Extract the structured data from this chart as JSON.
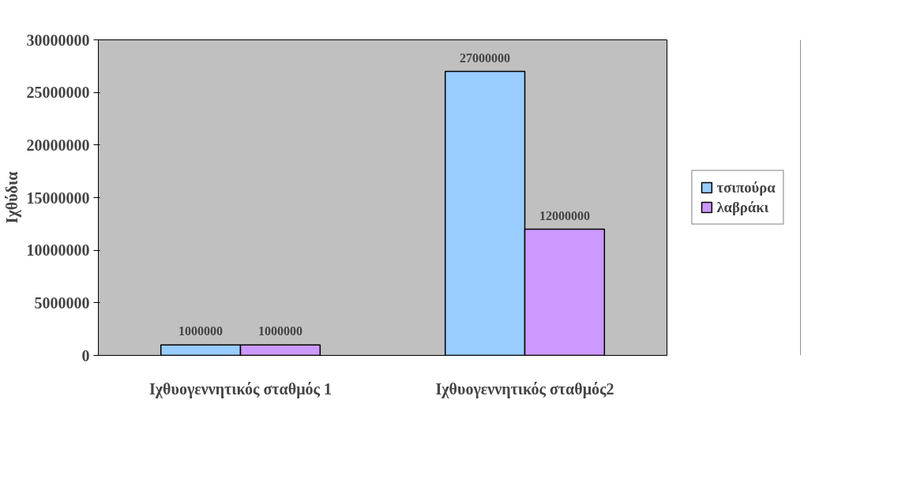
{
  "chart_data": {
    "type": "bar",
    "ylabel": "Ιχθύδια",
    "categories": [
      "Ιχθυογεννητικός σταθμός 1",
      "Ιχθυογεννητικός σταθμός2"
    ],
    "series": [
      {
        "name": "τσιπούρα",
        "color": "#99ccff",
        "values": [
          1000000,
          27000000
        ]
      },
      {
        "name": "λαβράκι",
        "color": "#cc99ff",
        "values": [
          1000000,
          12000000
        ]
      }
    ],
    "ylim": [
      0,
      30000000
    ],
    "yticks": [
      0,
      5000000,
      10000000,
      15000000,
      20000000,
      25000000,
      30000000
    ],
    "data_labels": true,
    "grid": false,
    "legend": "right"
  }
}
